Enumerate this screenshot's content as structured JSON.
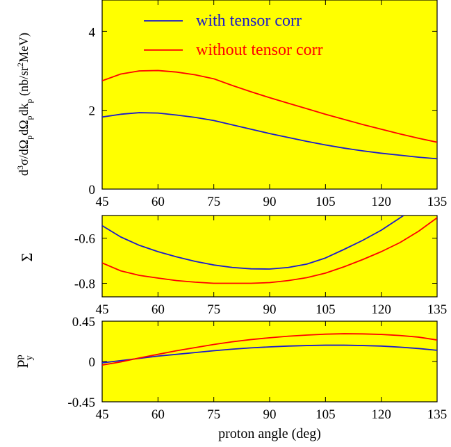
{
  "colors": {
    "background": "#ffff00",
    "series_with": "#1a1acc",
    "series_without": "#ff0000",
    "axis": "#000000"
  },
  "legend": {
    "with_label": "with tensor corr",
    "without_label": "without tensor corr"
  },
  "xlabel": "proton angle (deg)",
  "chart_data": [
    {
      "type": "line",
      "title": "",
      "xlabel": "",
      "ylabel": "d3σ/dΩpdΩpdkp (nb/sr2MeV)",
      "xlim": [
        45,
        135
      ],
      "ylim": [
        0,
        4.8
      ],
      "xticks": [
        45,
        60,
        75,
        90,
        105,
        120,
        135
      ],
      "xtick_labels": [
        "45",
        "60",
        "75",
        "90",
        "105",
        "120",
        "135"
      ],
      "yticks": [
        0,
        2,
        4
      ],
      "ytick_labels": [
        "0",
        "2",
        "4"
      ],
      "grid": false,
      "legend_position": "top",
      "series": [
        {
          "name": "with tensor corr",
          "x": [
            45,
            50,
            55,
            60,
            65,
            70,
            75,
            80,
            85,
            90,
            95,
            100,
            105,
            110,
            115,
            120,
            125,
            130,
            135
          ],
          "y": [
            1.83,
            1.9,
            1.94,
            1.93,
            1.88,
            1.82,
            1.74,
            1.63,
            1.52,
            1.41,
            1.31,
            1.21,
            1.12,
            1.04,
            0.97,
            0.91,
            0.86,
            0.81,
            0.77
          ]
        },
        {
          "name": "without tensor corr",
          "x": [
            45,
            50,
            55,
            60,
            65,
            70,
            75,
            80,
            85,
            90,
            95,
            100,
            105,
            110,
            115,
            120,
            125,
            130,
            135
          ],
          "y": [
            2.75,
            2.92,
            3.0,
            3.01,
            2.97,
            2.9,
            2.8,
            2.63,
            2.47,
            2.32,
            2.18,
            2.04,
            1.9,
            1.77,
            1.64,
            1.52,
            1.4,
            1.29,
            1.19
          ]
        }
      ]
    },
    {
      "type": "line",
      "title": "",
      "xlabel": "",
      "ylabel": "Σ",
      "xlim": [
        45,
        135
      ],
      "ylim": [
        -0.86,
        -0.5
      ],
      "xticks": [
        45,
        60,
        75,
        90,
        105,
        120,
        135
      ],
      "xtick_labels": [
        "45",
        "60",
        "75",
        "90",
        "105",
        "120",
        "135"
      ],
      "yticks": [
        -0.6,
        -0.8
      ],
      "ytick_labels": [
        "-0.6",
        "-0.8"
      ],
      "grid": false,
      "series": [
        {
          "name": "with tensor corr",
          "x": [
            45,
            50,
            55,
            60,
            65,
            70,
            75,
            80,
            85,
            90,
            95,
            100,
            105,
            110,
            115,
            120,
            126
          ],
          "y": [
            -0.545,
            -0.595,
            -0.632,
            -0.66,
            -0.683,
            -0.703,
            -0.719,
            -0.73,
            -0.736,
            -0.737,
            -0.73,
            -0.715,
            -0.688,
            -0.65,
            -0.61,
            -0.565,
            -0.5
          ]
        },
        {
          "name": "without tensor corr",
          "x": [
            45,
            50,
            55,
            60,
            65,
            70,
            75,
            80,
            85,
            90,
            95,
            100,
            105,
            110,
            115,
            120,
            125,
            130,
            135
          ],
          "y": [
            -0.71,
            -0.745,
            -0.765,
            -0.777,
            -0.788,
            -0.795,
            -0.8,
            -0.8,
            -0.8,
            -0.797,
            -0.788,
            -0.775,
            -0.755,
            -0.727,
            -0.695,
            -0.66,
            -0.62,
            -0.57,
            -0.51
          ]
        }
      ]
    },
    {
      "type": "line",
      "title": "",
      "xlabel": "proton angle (deg)",
      "ylabel": "Pyp",
      "xlim": [
        45,
        135
      ],
      "ylim": [
        -0.45,
        0.45
      ],
      "xticks": [
        45,
        60,
        75,
        90,
        105,
        120,
        135
      ],
      "xtick_labels": [
        "45",
        "60",
        "75",
        "90",
        "105",
        "120",
        "135"
      ],
      "yticks": [
        0.45,
        0,
        -0.45
      ],
      "ytick_labels": [
        "0.45",
        "0",
        "-0.45"
      ],
      "grid": false,
      "series": [
        {
          "name": "with tensor corr",
          "x": [
            45,
            50,
            55,
            60,
            65,
            70,
            75,
            80,
            85,
            90,
            95,
            100,
            105,
            110,
            115,
            120,
            125,
            130,
            135
          ],
          "y": [
            -0.015,
            0.01,
            0.035,
            0.06,
            0.08,
            0.1,
            0.12,
            0.138,
            0.152,
            0.163,
            0.172,
            0.178,
            0.182,
            0.182,
            0.178,
            0.172,
            0.16,
            0.145,
            0.125
          ]
        },
        {
          "name": "without tensor corr",
          "x": [
            45,
            50,
            55,
            60,
            65,
            70,
            75,
            80,
            85,
            90,
            95,
            100,
            105,
            110,
            115,
            120,
            125,
            130,
            135
          ],
          "y": [
            -0.04,
            -0.005,
            0.04,
            0.08,
            0.12,
            0.155,
            0.19,
            0.22,
            0.245,
            0.265,
            0.282,
            0.295,
            0.305,
            0.31,
            0.308,
            0.302,
            0.29,
            0.272,
            0.24
          ]
        }
      ]
    }
  ]
}
